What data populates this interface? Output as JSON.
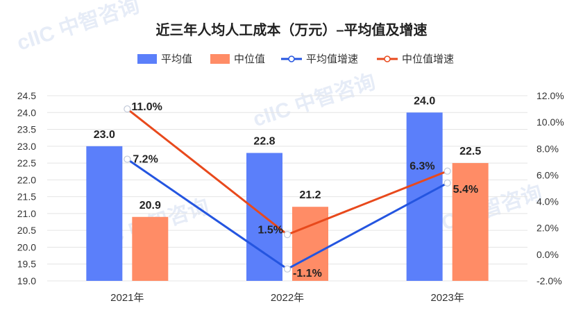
{
  "watermark": "cIIC 中智咨询",
  "chart_data": {
    "type": "bar",
    "title": "近三年人均人工成本（万元）–平均值及增速",
    "categories": [
      "2021年",
      "2022年",
      "2023年"
    ],
    "series": [
      {
        "name": "平均值",
        "kind": "bar",
        "axis": "left",
        "color": "#5B7FFA",
        "values": [
          23.0,
          22.8,
          24.0
        ],
        "labels": [
          "23.0",
          "22.8",
          "24.0"
        ]
      },
      {
        "name": "中位值",
        "kind": "bar",
        "axis": "left",
        "color": "#FF8C66",
        "values": [
          20.9,
          21.2,
          22.5
        ],
        "labels": [
          "20.9",
          "21.2",
          "22.5"
        ]
      },
      {
        "name": "平均值增速",
        "kind": "line",
        "axis": "right",
        "color": "#2455E0",
        "values": [
          7.2,
          -1.1,
          5.4
        ],
        "labels": [
          "7.2%",
          "-1.1%",
          "5.4%"
        ]
      },
      {
        "name": "中位值增速",
        "kind": "line",
        "axis": "right",
        "color": "#E8491C",
        "values": [
          11.0,
          1.5,
          6.3
        ],
        "labels": [
          "11.0%",
          "1.5%",
          "6.3%"
        ]
      }
    ],
    "left_axis": {
      "min": 19.0,
      "max": 24.5,
      "ticks": [
        "19.0",
        "19.5",
        "20.0",
        "20.5",
        "21.0",
        "21.5",
        "22.0",
        "22.5",
        "23.0",
        "23.5",
        "24.0",
        "24.5"
      ]
    },
    "right_axis": {
      "min": -2.0,
      "max": 12.0,
      "ticks": [
        "-2.0%",
        "0.0%",
        "2.0%",
        "4.0%",
        "6.0%",
        "8.0%",
        "10.0%",
        "12.0%"
      ]
    },
    "grid": true,
    "legend_position": "top"
  }
}
